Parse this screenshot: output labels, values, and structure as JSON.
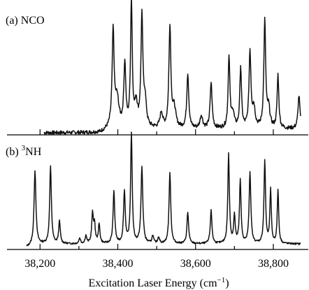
{
  "chart_data": [
    {
      "type": "line",
      "panel_label": "(a)",
      "species": "NCO",
      "species_superscript": "",
      "xlim": [
        38115,
        38890
      ],
      "onset": 38210,
      "rise": 38355,
      "noise": 0.015,
      "peaks": [
        {
          "x": 38388,
          "h": 0.75,
          "w": 3.0
        },
        {
          "x": 38398,
          "h": 0.22,
          "w": 6.0
        },
        {
          "x": 38418,
          "h": 0.5,
          "w": 3.0
        },
        {
          "x": 38435,
          "h": 1.0,
          "w": 2.6
        },
        {
          "x": 38447,
          "h": 0.18,
          "w": 4.0
        },
        {
          "x": 38462,
          "h": 0.86,
          "w": 3.0
        },
        {
          "x": 38470,
          "h": 0.2,
          "w": 4.0
        },
        {
          "x": 38512,
          "h": 0.12,
          "w": 4.0
        },
        {
          "x": 38534,
          "h": 0.8,
          "w": 3.0
        },
        {
          "x": 38545,
          "h": 0.15,
          "w": 5.0
        },
        {
          "x": 38580,
          "h": 0.43,
          "w": 3.0
        },
        {
          "x": 38615,
          "h": 0.1,
          "w": 4.0
        },
        {
          "x": 38640,
          "h": 0.36,
          "w": 3.0
        },
        {
          "x": 38686,
          "h": 0.57,
          "w": 2.6
        },
        {
          "x": 38696,
          "h": 0.12,
          "w": 4.0
        },
        {
          "x": 38716,
          "h": 0.48,
          "w": 2.6
        },
        {
          "x": 38740,
          "h": 0.6,
          "w": 3.0
        },
        {
          "x": 38750,
          "h": 0.15,
          "w": 4.0
        },
        {
          "x": 38778,
          "h": 0.84,
          "w": 2.8
        },
        {
          "x": 38788,
          "h": 0.15,
          "w": 4.0
        },
        {
          "x": 38812,
          "h": 0.42,
          "w": 2.6
        },
        {
          "x": 38866,
          "h": 0.26,
          "w": 3.0
        }
      ]
    },
    {
      "type": "line",
      "panel_label": "(b)",
      "species": "NH",
      "species_superscript": "3",
      "xlim": [
        38115,
        38890
      ],
      "onset": 38165,
      "rise": 38165,
      "noise": 0.008,
      "peaks": [
        {
          "x": 38187,
          "h": 0.67,
          "w": 2.8
        },
        {
          "x": 38227,
          "h": 0.7,
          "w": 2.6
        },
        {
          "x": 38250,
          "h": 0.2,
          "w": 2.5
        },
        {
          "x": 38302,
          "h": 0.05,
          "w": 2.5
        },
        {
          "x": 38318,
          "h": 0.07,
          "w": 2.5
        },
        {
          "x": 38335,
          "h": 0.26,
          "w": 2.5
        },
        {
          "x": 38340,
          "h": 0.16,
          "w": 2.5
        },
        {
          "x": 38352,
          "h": 0.17,
          "w": 2.5
        },
        {
          "x": 38390,
          "h": 0.47,
          "w": 2.6
        },
        {
          "x": 38417,
          "h": 0.47,
          "w": 2.6
        },
        {
          "x": 38435,
          "h": 1.0,
          "w": 2.4
        },
        {
          "x": 38462,
          "h": 0.69,
          "w": 2.8
        },
        {
          "x": 38490,
          "h": 0.07,
          "w": 2.5
        },
        {
          "x": 38505,
          "h": 0.06,
          "w": 2.5
        },
        {
          "x": 38534,
          "h": 0.65,
          "w": 2.6
        },
        {
          "x": 38580,
          "h": 0.28,
          "w": 2.6
        },
        {
          "x": 38640,
          "h": 0.3,
          "w": 2.6
        },
        {
          "x": 38685,
          "h": 0.81,
          "w": 2.4
        },
        {
          "x": 38700,
          "h": 0.25,
          "w": 2.4
        },
        {
          "x": 38715,
          "h": 0.57,
          "w": 2.4
        },
        {
          "x": 38740,
          "h": 0.65,
          "w": 2.6
        },
        {
          "x": 38778,
          "h": 0.75,
          "w": 2.4
        },
        {
          "x": 38793,
          "h": 0.48,
          "w": 2.2
        },
        {
          "x": 38812,
          "h": 0.49,
          "w": 2.2
        }
      ]
    }
  ],
  "x_axis": {
    "ticks": [
      38200,
      38400,
      38600,
      38800
    ],
    "tick_labels": [
      "38,200",
      "38,400",
      "38,600",
      "38,800"
    ],
    "minor_ticks": [
      38100,
      38300,
      38500,
      38700,
      38900
    ],
    "title": "Excitation Laser Energy (cm",
    "title_exponent": "−1",
    "title_close": ")"
  }
}
